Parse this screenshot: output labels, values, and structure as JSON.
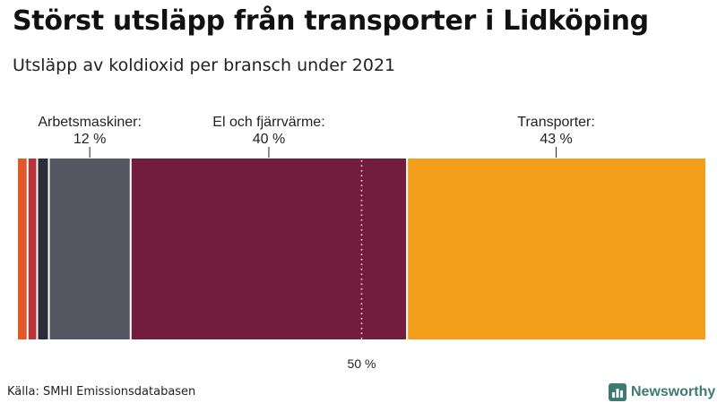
{
  "title": "Störst utsläpp från transporter i Lidköping",
  "subtitle": "Utsläpp av koldioxid per bransch under 2021",
  "source": "Källa: SMHI Emissionsdatabasen",
  "brand": {
    "name": "Newsworthy",
    "icon": "bar-chart-logo-icon",
    "color": "#3d7a73"
  },
  "chart_data": {
    "type": "bar",
    "orientation": "horizontal-stacked",
    "unit": "%",
    "xlim": [
      0,
      100
    ],
    "reference_line": {
      "value": 50,
      "label": "50 %"
    },
    "segments": [
      {
        "name": "small-1",
        "value": 1.4,
        "color": "#e05a29",
        "label": null,
        "pct_label": null
      },
      {
        "name": "small-2",
        "value": 1.4,
        "color": "#b8343a",
        "label": null,
        "pct_label": null
      },
      {
        "name": "small-3",
        "value": 1.7,
        "color": "#2b2d38",
        "label": null,
        "pct_label": null
      },
      {
        "name": "arbetsmaskiner",
        "value": 11.9,
        "color": "#575663",
        "label": "Arbetsmaskiner:",
        "pct_label": "12 %"
      },
      {
        "name": "el-och-fjarrvarme",
        "value": 40.2,
        "color": "#721d3b",
        "label": "El och fjärrvärme:",
        "pct_label": "40 %"
      },
      {
        "name": "transporter",
        "value": 43.4,
        "color": "#f49f1c",
        "label": "Transporter:",
        "pct_label": "43 %"
      }
    ]
  }
}
